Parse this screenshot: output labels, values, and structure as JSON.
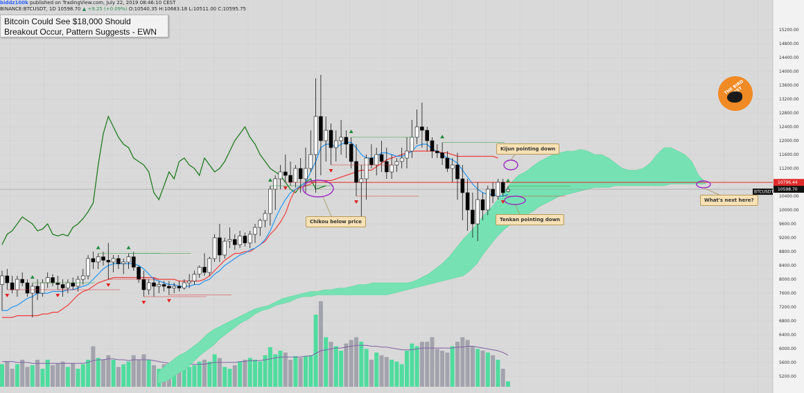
{
  "header": {
    "user": "biddz100k",
    "published": " published on TradingView.com, July 22, 2019 08:46:10 CEST",
    "symbol_line": "BINANCE:BTCUSDT, 1D  10598.70",
    "change": " ▲ +9.25 (+0.09%) ",
    "ohlc": "O:10540.35  H:10683.18  L:10511.00  C:10595.75"
  },
  "idea_title": "Bitcoin Could See $18,000 Should Breakout Occur, Pattern Suggests - EWN",
  "annotations": {
    "kijun": "Kijun pointing down",
    "tenkan": "Tenkan pointing down",
    "chikou": "Chikou below price",
    "next": "What's next here?"
  },
  "logo_text": "THE BIRD NEST",
  "price_tags": {
    "resistance": "10796.44",
    "last": "10598.70",
    "symbol": "BTCUSDT"
  },
  "colors": {
    "background": "#d9d9d9",
    "cloud": "#76e2b3",
    "tenkan": "#2196f3",
    "kijun": "#f23c3c",
    "chikou": "#1e7b1e",
    "up_candle": "#ffffff",
    "down_candle": "#000000",
    "volume_up": "#4fdc9e",
    "volume_down": "#a3a3ad",
    "volume_ma": "#7e62a8"
  },
  "chart_data": {
    "type": "candlestick",
    "symbol": "BINANCE:BTCUSDT",
    "interval": "1D",
    "ylim": [
      5000,
      15400
    ],
    "y_ticks": [
      5200,
      5600,
      6000,
      6400,
      6800,
      7200,
      7600,
      8000,
      8400,
      8800,
      9200,
      9600,
      10000,
      10400,
      10800,
      11200,
      11600,
      12000,
      12400,
      12800,
      13200,
      13600,
      14000,
      14400,
      14800,
      15200
    ],
    "horizontal_line": 10796.44,
    "last_price": 10598.7,
    "candles": [
      {
        "o": 7850,
        "h": 8250,
        "l": 7100,
        "c": 8100
      },
      {
        "o": 8100,
        "h": 8300,
        "l": 7700,
        "c": 7900
      },
      {
        "o": 7900,
        "h": 8100,
        "l": 7600,
        "c": 7700
      },
      {
        "o": 7700,
        "h": 8100,
        "l": 7500,
        "c": 8000
      },
      {
        "o": 8000,
        "h": 8200,
        "l": 7800,
        "c": 7900
      },
      {
        "o": 7900,
        "h": 8000,
        "l": 7500,
        "c": 7600
      },
      {
        "o": 7600,
        "h": 7900,
        "l": 6900,
        "c": 7800
      },
      {
        "o": 7800,
        "h": 8000,
        "l": 7400,
        "c": 7600
      },
      {
        "o": 7600,
        "h": 8000,
        "l": 7500,
        "c": 7900
      },
      {
        "o": 7900,
        "h": 8200,
        "l": 7750,
        "c": 8050
      },
      {
        "o": 8050,
        "h": 8150,
        "l": 7800,
        "c": 7900
      },
      {
        "o": 7900,
        "h": 8100,
        "l": 7700,
        "c": 7850
      },
      {
        "o": 7850,
        "h": 8000,
        "l": 7500,
        "c": 7750
      },
      {
        "o": 7750,
        "h": 8000,
        "l": 7600,
        "c": 7900
      },
      {
        "o": 7900,
        "h": 8050,
        "l": 7700,
        "c": 7800
      },
      {
        "o": 7800,
        "h": 8100,
        "l": 7650,
        "c": 8000
      },
      {
        "o": 8000,
        "h": 8300,
        "l": 7850,
        "c": 8100
      },
      {
        "o": 8100,
        "h": 8700,
        "l": 8000,
        "c": 8600
      },
      {
        "o": 8600,
        "h": 8800,
        "l": 8300,
        "c": 8500
      },
      {
        "o": 8500,
        "h": 8750,
        "l": 8300,
        "c": 8650
      },
      {
        "o": 8650,
        "h": 8800,
        "l": 8400,
        "c": 8550
      },
      {
        "o": 8550,
        "h": 9050,
        "l": 8000,
        "c": 8500
      },
      {
        "o": 8500,
        "h": 8700,
        "l": 8200,
        "c": 8600
      },
      {
        "o": 8600,
        "h": 8700,
        "l": 8300,
        "c": 8450
      },
      {
        "o": 8450,
        "h": 8600,
        "l": 8150,
        "c": 8500
      },
      {
        "o": 8500,
        "h": 8750,
        "l": 8300,
        "c": 8650
      },
      {
        "o": 8650,
        "h": 8800,
        "l": 8250,
        "c": 8350
      },
      {
        "o": 8350,
        "h": 8400,
        "l": 7900,
        "c": 8000
      },
      {
        "o": 8000,
        "h": 8250,
        "l": 7500,
        "c": 7700
      },
      {
        "o": 7700,
        "h": 8000,
        "l": 7550,
        "c": 7900
      },
      {
        "o": 7900,
        "h": 8050,
        "l": 7500,
        "c": 7800
      },
      {
        "o": 7800,
        "h": 7950,
        "l": 7600,
        "c": 7850
      },
      {
        "o": 7850,
        "h": 7950,
        "l": 7650,
        "c": 7800
      },
      {
        "o": 7800,
        "h": 7950,
        "l": 7550,
        "c": 7750
      },
      {
        "o": 7750,
        "h": 7900,
        "l": 7600,
        "c": 7800
      },
      {
        "o": 7800,
        "h": 7950,
        "l": 7650,
        "c": 7750
      },
      {
        "o": 7750,
        "h": 8000,
        "l": 7700,
        "c": 7900
      },
      {
        "o": 7900,
        "h": 8150,
        "l": 7750,
        "c": 7950
      },
      {
        "o": 7950,
        "h": 8250,
        "l": 7850,
        "c": 8150
      },
      {
        "o": 8150,
        "h": 8400,
        "l": 8050,
        "c": 8350
      },
      {
        "o": 8350,
        "h": 8750,
        "l": 8100,
        "c": 8200
      },
      {
        "o": 8200,
        "h": 8650,
        "l": 8100,
        "c": 8600
      },
      {
        "o": 8600,
        "h": 9300,
        "l": 8500,
        "c": 9200
      },
      {
        "o": 9200,
        "h": 9600,
        "l": 8500,
        "c": 8700
      },
      {
        "o": 8700,
        "h": 9200,
        "l": 8600,
        "c": 9100
      },
      {
        "o": 9100,
        "h": 9500,
        "l": 8900,
        "c": 9150
      },
      {
        "o": 9150,
        "h": 9300,
        "l": 8850,
        "c": 9000
      },
      {
        "o": 9000,
        "h": 9400,
        "l": 8900,
        "c": 9250
      },
      {
        "o": 9250,
        "h": 9350,
        "l": 8950,
        "c": 9050
      },
      {
        "o": 9050,
        "h": 9400,
        "l": 8900,
        "c": 9300
      },
      {
        "o": 9300,
        "h": 9600,
        "l": 9050,
        "c": 9500
      },
      {
        "o": 9500,
        "h": 9750,
        "l": 9250,
        "c": 9700
      },
      {
        "o": 9700,
        "h": 10000,
        "l": 9500,
        "c": 9900
      },
      {
        "o": 9900,
        "h": 10700,
        "l": 9550,
        "c": 10600
      },
      {
        "o": 10600,
        "h": 11000,
        "l": 10000,
        "c": 10900
      },
      {
        "o": 10900,
        "h": 11300,
        "l": 10600,
        "c": 11100
      },
      {
        "o": 11100,
        "h": 11600,
        "l": 10800,
        "c": 11000
      },
      {
        "o": 11000,
        "h": 11400,
        "l": 10700,
        "c": 10800
      },
      {
        "o": 10800,
        "h": 11300,
        "l": 10650,
        "c": 11200
      },
      {
        "o": 11200,
        "h": 11500,
        "l": 10500,
        "c": 10900
      },
      {
        "o": 10900,
        "h": 11800,
        "l": 10500,
        "c": 11200
      },
      {
        "o": 11200,
        "h": 12300,
        "l": 11100,
        "c": 11600
      },
      {
        "o": 11600,
        "h": 13800,
        "l": 10500,
        "c": 12700
      },
      {
        "o": 12700,
        "h": 13900,
        "l": 11000,
        "c": 12000
      },
      {
        "o": 12000,
        "h": 12700,
        "l": 11400,
        "c": 12300
      },
      {
        "o": 12300,
        "h": 12500,
        "l": 11300,
        "c": 11800
      },
      {
        "o": 11800,
        "h": 12300,
        "l": 11400,
        "c": 12000
      },
      {
        "o": 12000,
        "h": 12600,
        "l": 11600,
        "c": 12100
      },
      {
        "o": 12100,
        "h": 12300,
        "l": 11500,
        "c": 11900
      },
      {
        "o": 11900,
        "h": 12100,
        "l": 11200,
        "c": 11400
      },
      {
        "o": 11400,
        "h": 11900,
        "l": 10400,
        "c": 10800
      },
      {
        "o": 10800,
        "h": 11300,
        "l": 9800,
        "c": 10900
      },
      {
        "o": 10900,
        "h": 11600,
        "l": 10300,
        "c": 11500
      },
      {
        "o": 11500,
        "h": 11900,
        "l": 11200,
        "c": 11300
      },
      {
        "o": 11300,
        "h": 11800,
        "l": 11000,
        "c": 11600
      },
      {
        "o": 11600,
        "h": 12000,
        "l": 11100,
        "c": 11400
      },
      {
        "o": 11400,
        "h": 11800,
        "l": 10900,
        "c": 11100
      },
      {
        "o": 11100,
        "h": 11600,
        "l": 10900,
        "c": 11300
      },
      {
        "o": 11300,
        "h": 11500,
        "l": 11100,
        "c": 11400
      },
      {
        "o": 11400,
        "h": 11800,
        "l": 11200,
        "c": 11500
      },
      {
        "o": 11500,
        "h": 12100,
        "l": 11200,
        "c": 11700
      },
      {
        "o": 11700,
        "h": 12600,
        "l": 11500,
        "c": 12100
      },
      {
        "o": 12100,
        "h": 12900,
        "l": 11900,
        "c": 12400
      },
      {
        "o": 12400,
        "h": 13100,
        "l": 11800,
        "c": 12300
      },
      {
        "o": 12300,
        "h": 12400,
        "l": 11700,
        "c": 12000
      },
      {
        "o": 12000,
        "h": 12100,
        "l": 11500,
        "c": 11700
      },
      {
        "o": 11700,
        "h": 11900,
        "l": 11500,
        "c": 11650
      },
      {
        "o": 11650,
        "h": 11950,
        "l": 11300,
        "c": 11500
      },
      {
        "o": 11500,
        "h": 11700,
        "l": 11100,
        "c": 11200
      },
      {
        "o": 11200,
        "h": 11500,
        "l": 10800,
        "c": 11300
      },
      {
        "o": 11300,
        "h": 11650,
        "l": 10300,
        "c": 10900
      },
      {
        "o": 10900,
        "h": 11300,
        "l": 9700,
        "c": 10500
      },
      {
        "o": 10500,
        "h": 10900,
        "l": 9400,
        "c": 10000
      },
      {
        "o": 10000,
        "h": 10500,
        "l": 9200,
        "c": 9600
      },
      {
        "o": 9600,
        "h": 10800,
        "l": 9100,
        "c": 10300
      },
      {
        "o": 10300,
        "h": 10500,
        "l": 9700,
        "c": 10000
      },
      {
        "o": 10000,
        "h": 10700,
        "l": 9850,
        "c": 10600
      },
      {
        "o": 10600,
        "h": 10800,
        "l": 10200,
        "c": 10400
      },
      {
        "o": 10400,
        "h": 10900,
        "l": 10300,
        "c": 10800
      },
      {
        "o": 10800,
        "h": 10900,
        "l": 10400,
        "c": 10500
      },
      {
        "o": 10540.35,
        "h": 10683.18,
        "l": 10511,
        "c": 10595.75
      }
    ],
    "tenkan": [
      7100,
      7100,
      7200,
      7250,
      7350,
      7450,
      7500,
      7600,
      7600,
      7600,
      7650,
      7650,
      7650,
      7700,
      7700,
      7750,
      7800,
      7850,
      8000,
      8150,
      8300,
      8400,
      8450,
      8450,
      8450,
      8450,
      8450,
      8400,
      8300,
      8150,
      8000,
      7950,
      7900,
      7850,
      7850,
      7800,
      7800,
      7800,
      7850,
      7850,
      7950,
      8000,
      8150,
      8250,
      8400,
      8500,
      8600,
      8700,
      8750,
      8850,
      8900,
      9000,
      9150,
      9400,
      9750,
      10050,
      10300,
      10500,
      10600,
      10700,
      10800,
      11100,
      11400,
      11800,
      11900,
      11900,
      11800,
      11900,
      11950,
      11950,
      11800,
      11600,
      11500,
      11500,
      11550,
      11650,
      11650,
      11600,
      11550,
      11550,
      11600,
      11700,
      11850,
      11900,
      11900,
      11750,
      11700,
      11600,
      11500,
      11450,
      11350,
      11150,
      10950,
      10750,
      10600,
      10500,
      10450,
      10450,
      10400,
      10400,
      10450
    ],
    "kijun": [
      6900,
      6900,
      6900,
      6950,
      6950,
      6950,
      6950,
      6950,
      7000,
      7000,
      7050,
      7050,
      7150,
      7250,
      7400,
      7550,
      7650,
      7700,
      7800,
      7900,
      7950,
      8000,
      8050,
      8050,
      8050,
      8050,
      8050,
      8050,
      8050,
      8050,
      8050,
      8000,
      8000,
      8000,
      8000,
      7950,
      7950,
      7950,
      7950,
      7950,
      8000,
      8100,
      8250,
      8400,
      8550,
      8650,
      8750,
      8750,
      8800,
      8800,
      8900,
      9000,
      9100,
      9300,
      9450,
      9650,
      9900,
      10300,
      10600,
      10650,
      10700,
      10750,
      10850,
      10850,
      10850,
      10850,
      10900,
      10950,
      11000,
      11050,
      11100,
      11150,
      11150,
      11150,
      11250,
      11350,
      11450,
      11500,
      11550,
      11600,
      11650,
      11700,
      11700,
      11700,
      11700,
      11700,
      11700,
      11650,
      11650,
      11600,
      11550,
      11550,
      11550,
      11550,
      11550,
      11550,
      11550,
      11550,
      11500
    ],
    "chikou": [
      9000,
      9300,
      9400,
      9600,
      9800,
      9700,
      9600,
      9400,
      9450,
      9600,
      9300,
      9250,
      9300,
      9250,
      9500,
      9600,
      9750,
      9950,
      10200,
      11300,
      12200,
      12700,
      12400,
      12100,
      11900,
      11800,
      11500,
      11400,
      11300,
      11100,
      10500,
      10300,
      10700,
      11100,
      10900,
      11400,
      11500,
      11300,
      11200,
      11000,
      11500,
      11300,
      11100,
      11200,
      11400,
      11700,
      12000,
      12200,
      12400,
      12100,
      11900,
      11600,
      11400,
      11200,
      11100,
      11000,
      10800,
      10600,
      10500,
      10700,
      10800,
      10900,
      10600,
      10650,
      10700
    ],
    "cloud_span_a": [
      5300,
      5500,
      5650,
      5800,
      5900,
      6050,
      6200,
      6400,
      6550,
      6650,
      6750,
      6850,
      6950,
      7050,
      7150,
      7200,
      7250,
      7350,
      7450,
      7500,
      7550,
      7600,
      7650,
      7650,
      7700,
      7700,
      7750,
      7750,
      7800,
      7850,
      7850,
      7900,
      7900,
      7900,
      7900,
      7900,
      7900,
      7950,
      8050,
      8150,
      8300,
      8450,
      8650,
      8900,
      9150,
      9350,
      9600,
      9850,
      10050,
      10300,
      10550,
      10800,
      11000,
      11100,
      11250,
      11400,
      11500,
      11600,
      11650,
      11700,
      11700,
      11750,
      11700,
      11600,
      11600,
      11500,
      11350,
      11200,
      11150,
      11150,
      11200,
      11350,
      11600,
      11800,
      11800,
      11700,
      11600,
      11400,
      11000,
      10800
    ],
    "cloud_span_b": [
      5000,
      5050,
      5150,
      5300,
      5400,
      5600,
      5800,
      5950,
      6100,
      6300,
      6450,
      6600,
      6750,
      6850,
      7000,
      7100,
      7150,
      7250,
      7300,
      7350,
      7450,
      7500,
      7500,
      7550,
      7550,
      7550,
      7550,
      7550,
      7550,
      7550,
      7550,
      7550,
      7550,
      7550,
      7600,
      7650,
      7700,
      7750,
      7800,
      7850,
      7900,
      7950,
      8000,
      8050,
      8100,
      8250,
      8450,
      8750,
      9000,
      9250,
      9450,
      9600,
      9750,
      9850,
      9950,
      10100,
      10200,
      10300,
      10400,
      10450,
      10500,
      10550,
      10600,
      10650,
      10650,
      10650,
      10700,
      10700,
      10700,
      10700,
      10700,
      10700,
      10700,
      10700,
      10750,
      10750,
      10750,
      10750,
      10750,
      10750
    ],
    "volume": [
      0.25,
      0.28,
      0.2,
      0.25,
      0.3,
      0.22,
      0.24,
      0.3,
      0.2,
      0.3,
      0.24,
      0.26,
      0.28,
      0.22,
      0.26,
      0.2,
      0.25,
      0.3,
      0.45,
      0.32,
      0.3,
      0.35,
      0.3,
      0.22,
      0.25,
      0.28,
      0.35,
      0.3,
      0.36,
      0.3,
      0.24,
      0.2,
      0.25,
      0.22,
      0.2,
      0.22,
      0.22,
      0.22,
      0.24,
      0.28,
      0.3,
      0.28,
      0.36,
      0.32,
      0.22,
      0.2,
      0.24,
      0.28,
      0.3,
      0.32,
      0.3,
      0.28,
      0.35,
      0.44,
      0.36,
      0.4,
      0.38,
      0.3,
      0.34,
      0.32,
      0.34,
      0.35,
      0.8,
      0.95,
      0.55,
      0.5,
      0.45,
      0.4,
      0.48,
      0.52,
      0.55,
      0.5,
      0.42,
      0.3,
      0.38,
      0.35,
      0.33,
      0.3,
      0.28,
      0.25,
      0.4,
      0.48,
      0.45,
      0.5,
      0.5,
      0.55,
      0.42,
      0.4,
      0.38,
      0.45,
      0.5,
      0.55,
      0.52,
      0.45,
      0.42,
      0.4,
      0.38,
      0.35,
      0.3,
      0.2,
      0.06
    ],
    "volume_ma": [
      0.28,
      0.28,
      0.28,
      0.27,
      0.27,
      0.27,
      0.26,
      0.26,
      0.26,
      0.26,
      0.26,
      0.26,
      0.26,
      0.26,
      0.26,
      0.26,
      0.26,
      0.27,
      0.29,
      0.3,
      0.3,
      0.31,
      0.31,
      0.3,
      0.3,
      0.29,
      0.3,
      0.3,
      0.3,
      0.3,
      0.29,
      0.28,
      0.27,
      0.26,
      0.25,
      0.25,
      0.25,
      0.25,
      0.25,
      0.25,
      0.25,
      0.26,
      0.27,
      0.27,
      0.27,
      0.27,
      0.27,
      0.28,
      0.28,
      0.29,
      0.29,
      0.29,
      0.3,
      0.31,
      0.32,
      0.33,
      0.33,
      0.33,
      0.33,
      0.33,
      0.34,
      0.34,
      0.37,
      0.4,
      0.41,
      0.42,
      0.43,
      0.43,
      0.44,
      0.45,
      0.46,
      0.46,
      0.46,
      0.45,
      0.45,
      0.44,
      0.44,
      0.43,
      0.42,
      0.41,
      0.41,
      0.41,
      0.42,
      0.43,
      0.43,
      0.43,
      0.43,
      0.43,
      0.43,
      0.43,
      0.44,
      0.44,
      0.45,
      0.45,
      0.44,
      0.43,
      0.42,
      0.41,
      0.4,
      0.38,
      0.35
    ],
    "signals_up": [
      6,
      19,
      25,
      53,
      69,
      87,
      100
    ],
    "signals_down": [
      1,
      11,
      21,
      28,
      33,
      56,
      65,
      70,
      99
    ]
  }
}
